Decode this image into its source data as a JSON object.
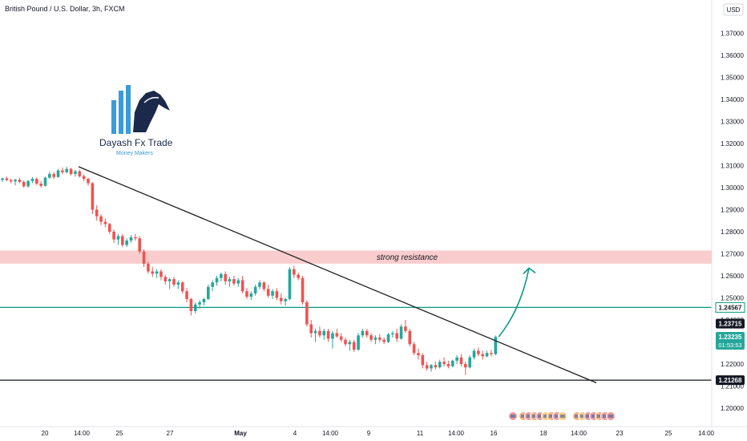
{
  "symbol_title": "British Pound / U.S. Dollar, 3h, FXCM",
  "currency_label": "USD",
  "logo": {
    "name": "Dayash Fx Trade",
    "tagline": "Money Makers"
  },
  "annotation": {
    "resistance": "strong resistance"
  },
  "colors": {
    "up": "#26a69a",
    "down": "#ef5350",
    "resistance_zone": "#f8c4c4",
    "support_line": "#089981",
    "trendline": "#1e1e1e",
    "arrow": "#089981",
    "logo_dark": "#1b2a4a",
    "logo_blue": "#3b9bd8"
  },
  "chart_data": {
    "type": "candlestick",
    "ylim": [
      1.195,
      1.385
    ],
    "y_ticks": [
      "1.37000",
      "1.36000",
      "1.35000",
      "1.34000",
      "1.33000",
      "1.32000",
      "1.31000",
      "1.30000",
      "1.29000",
      "1.28000",
      "1.27000",
      "1.26000",
      "1.25000",
      "1.24000",
      "1.23000",
      "1.22000",
      "1.21000",
      "1.20000"
    ],
    "x_ticks": [
      "20",
      "14:00",
      "25",
      "27",
      "May",
      "4",
      "14:00",
      "9",
      "11",
      "14:00",
      "16",
      "18",
      "14:00",
      "23",
      "25",
      "14:00"
    ],
    "resistance_zone": [
      1.2655,
      1.2715
    ],
    "horizontal_levels": [
      {
        "label": "1.24567",
        "value": 1.24567
      },
      {
        "label": "1.21268",
        "value": 1.21268
      }
    ],
    "price_labels": {
      "high_marker": "1.23715",
      "last": "1.23235",
      "countdown": "01:53:53"
    },
    "last_price": 1.23235,
    "trendline": {
      "start": [
        0,
        1.3095
      ],
      "end": [
        126,
        1.2115
      ]
    },
    "projection_target": 1.2635,
    "candles": [
      [
        1.3035,
        1.3045,
        1.3025,
        1.3042
      ],
      [
        1.3042,
        1.305,
        1.303,
        1.3034
      ],
      [
        1.3034,
        1.304,
        1.302,
        1.3028
      ],
      [
        1.3028,
        1.304,
        1.301,
        1.3036
      ],
      [
        1.3036,
        1.3045,
        1.302,
        1.3026
      ],
      [
        1.3026,
        1.3032,
        1.3,
        1.3006
      ],
      [
        1.3006,
        1.3035,
        1.3,
        1.303
      ],
      [
        1.303,
        1.3048,
        1.302,
        1.304
      ],
      [
        1.304,
        1.3046,
        1.3012,
        1.3018
      ],
      [
        1.3018,
        1.303,
        1.3,
        1.3008
      ],
      [
        1.3008,
        1.305,
        1.3005,
        1.3045
      ],
      [
        1.3045,
        1.3072,
        1.304,
        1.3062
      ],
      [
        1.3062,
        1.307,
        1.304,
        1.3048
      ],
      [
        1.3048,
        1.3085,
        1.3045,
        1.3078
      ],
      [
        1.3078,
        1.3092,
        1.306,
        1.307
      ],
      [
        1.307,
        1.3095,
        1.3065,
        1.3085
      ],
      [
        1.3085,
        1.309,
        1.3055,
        1.3062
      ],
      [
        1.3062,
        1.308,
        1.305,
        1.3074
      ],
      [
        1.3074,
        1.3082,
        1.3045,
        1.3052
      ],
      [
        1.3052,
        1.306,
        1.303,
        1.304
      ],
      [
        1.304,
        1.3045,
        1.301,
        1.302
      ],
      [
        1.302,
        1.3025,
        1.288,
        1.29
      ],
      [
        1.29,
        1.292,
        1.285,
        1.287
      ],
      [
        1.287,
        1.288,
        1.283,
        1.2845
      ],
      [
        1.2845,
        1.286,
        1.282,
        1.2835
      ],
      [
        1.2835,
        1.284,
        1.279,
        1.28
      ],
      [
        1.28,
        1.281,
        1.275,
        1.2765
      ],
      [
        1.2765,
        1.279,
        1.274,
        1.278
      ],
      [
        1.278,
        1.279,
        1.273,
        1.274
      ],
      [
        1.274,
        1.277,
        1.273,
        1.276
      ],
      [
        1.276,
        1.2785,
        1.275,
        1.2775
      ],
      [
        1.2775,
        1.279,
        1.276,
        1.277
      ],
      [
        1.277,
        1.278,
        1.27,
        1.271
      ],
      [
        1.271,
        1.272,
        1.264,
        1.2655
      ],
      [
        1.2655,
        1.2665,
        1.261,
        1.262
      ],
      [
        1.262,
        1.264,
        1.2595,
        1.261
      ],
      [
        1.261,
        1.263,
        1.259,
        1.262
      ],
      [
        1.262,
        1.263,
        1.258,
        1.2595
      ],
      [
        1.2595,
        1.2605,
        1.256,
        1.2575
      ],
      [
        1.2575,
        1.259,
        1.254,
        1.2585
      ],
      [
        1.2585,
        1.2595,
        1.255,
        1.256
      ],
      [
        1.256,
        1.258,
        1.254,
        1.257
      ],
      [
        1.257,
        1.2575,
        1.252,
        1.253
      ],
      [
        1.253,
        1.2545,
        1.248,
        1.2495
      ],
      [
        1.2495,
        1.25,
        1.242,
        1.244
      ],
      [
        1.244,
        1.248,
        1.243,
        1.247
      ],
      [
        1.247,
        1.249,
        1.245,
        1.248
      ],
      [
        1.248,
        1.25,
        1.2465,
        1.2495
      ],
      [
        1.2495,
        1.256,
        1.249,
        1.255
      ],
      [
        1.255,
        1.258,
        1.253,
        1.257
      ],
      [
        1.257,
        1.26,
        1.2555,
        1.259
      ],
      [
        1.259,
        1.2615,
        1.2575,
        1.2608
      ],
      [
        1.2608,
        1.262,
        1.256,
        1.2575
      ],
      [
        1.2575,
        1.2595,
        1.255,
        1.2585
      ],
      [
        1.2585,
        1.26,
        1.2555,
        1.2565
      ],
      [
        1.2565,
        1.259,
        1.255,
        1.258
      ],
      [
        1.258,
        1.26,
        1.252,
        1.253
      ],
      [
        1.253,
        1.2545,
        1.2495,
        1.2505
      ],
      [
        1.2505,
        1.253,
        1.249,
        1.252
      ],
      [
        1.252,
        1.256,
        1.251,
        1.255
      ],
      [
        1.255,
        1.258,
        1.254,
        1.257
      ],
      [
        1.257,
        1.2575,
        1.253,
        1.254
      ],
      [
        1.254,
        1.256,
        1.25,
        1.251
      ],
      [
        1.251,
        1.254,
        1.2495,
        1.253
      ],
      [
        1.253,
        1.2545,
        1.249,
        1.25
      ],
      [
        1.25,
        1.252,
        1.247,
        1.2485
      ],
      [
        1.2485,
        1.25,
        1.2465,
        1.2495
      ],
      [
        1.2495,
        1.264,
        1.249,
        1.263
      ],
      [
        1.263,
        1.2645,
        1.259,
        1.2605
      ],
      [
        1.2605,
        1.2615,
        1.258,
        1.259
      ],
      [
        1.259,
        1.26,
        1.247,
        1.248
      ],
      [
        1.248,
        1.249,
        1.237,
        1.238
      ],
      [
        1.238,
        1.24,
        1.232,
        1.234
      ],
      [
        1.234,
        1.236,
        1.23,
        1.235
      ],
      [
        1.235,
        1.237,
        1.232,
        1.233
      ],
      [
        1.233,
        1.236,
        1.231,
        1.235
      ],
      [
        1.235,
        1.236,
        1.23,
        1.2315
      ],
      [
        1.2315,
        1.235,
        1.227,
        1.234
      ],
      [
        1.234,
        1.236,
        1.232,
        1.2325
      ],
      [
        1.2325,
        1.234,
        1.23,
        1.231
      ],
      [
        1.231,
        1.232,
        1.228,
        1.229
      ],
      [
        1.229,
        1.231,
        1.226,
        1.23
      ],
      [
        1.23,
        1.231,
        1.2255,
        1.2265
      ],
      [
        1.2265,
        1.234,
        1.226,
        1.233
      ],
      [
        1.233,
        1.236,
        1.232,
        1.235
      ],
      [
        1.235,
        1.236,
        1.232,
        1.233
      ],
      [
        1.233,
        1.234,
        1.23,
        1.231
      ],
      [
        1.231,
        1.233,
        1.229,
        1.232
      ],
      [
        1.232,
        1.2335,
        1.23,
        1.231
      ],
      [
        1.231,
        1.232,
        1.229,
        1.23
      ],
      [
        1.23,
        1.234,
        1.2295,
        1.2335
      ],
      [
        1.2335,
        1.235,
        1.232,
        1.234
      ],
      [
        1.234,
        1.236,
        1.23,
        1.2315
      ],
      [
        1.2315,
        1.238,
        1.231,
        1.237
      ],
      [
        1.237,
        1.24,
        1.234,
        1.235
      ],
      [
        1.235,
        1.236,
        1.228,
        1.229
      ],
      [
        1.229,
        1.23,
        1.224,
        1.225
      ],
      [
        1.225,
        1.227,
        1.222,
        1.224
      ],
      [
        1.224,
        1.225,
        1.218,
        1.2195
      ],
      [
        1.2195,
        1.221,
        1.217,
        1.218
      ],
      [
        1.218,
        1.22,
        1.2165,
        1.2195
      ],
      [
        1.2195,
        1.221,
        1.2175,
        1.2185
      ],
      [
        1.2185,
        1.222,
        1.218,
        1.221
      ],
      [
        1.221,
        1.223,
        1.219,
        1.22
      ],
      [
        1.22,
        1.2215,
        1.218,
        1.219
      ],
      [
        1.219,
        1.222,
        1.2185,
        1.2215
      ],
      [
        1.2215,
        1.224,
        1.22,
        1.223
      ],
      [
        1.223,
        1.2245,
        1.219,
        1.22
      ],
      [
        1.22,
        1.221,
        1.215,
        1.2185
      ],
      [
        1.2185,
        1.224,
        1.218,
        1.223
      ],
      [
        1.223,
        1.227,
        1.222,
        1.226
      ],
      [
        1.226,
        1.2275,
        1.2235,
        1.2245
      ],
      [
        1.2245,
        1.226,
        1.222,
        1.2235
      ],
      [
        1.2235,
        1.226,
        1.223,
        1.225
      ],
      [
        1.225,
        1.2265,
        1.2235,
        1.2245
      ],
      [
        1.2245,
        1.233,
        1.224,
        1.2323
      ]
    ]
  }
}
